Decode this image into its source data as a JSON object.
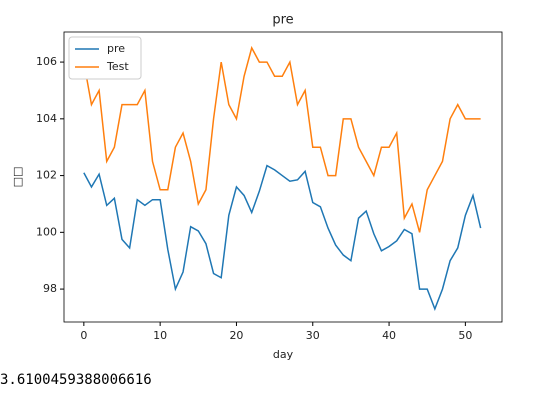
{
  "chart_data": {
    "type": "line",
    "title": "pre",
    "xlabel": "day",
    "ylabel": "□□",
    "x": [
      0,
      1,
      2,
      3,
      4,
      5,
      6,
      7,
      8,
      9,
      10,
      11,
      12,
      13,
      14,
      15,
      16,
      17,
      18,
      19,
      20,
      21,
      22,
      23,
      24,
      25,
      26,
      27,
      28,
      29,
      30,
      31,
      32,
      33,
      34,
      35,
      36,
      37,
      38,
      39,
      40,
      41,
      42,
      43,
      44,
      45,
      46,
      47,
      48,
      49,
      50,
      51,
      52
    ],
    "series": [
      {
        "name": "pre",
        "color": "#1f77b4",
        "values": [
          102.1,
          101.6,
          102.05,
          100.95,
          101.2,
          99.75,
          99.45,
          101.15,
          100.95,
          101.15,
          101.15,
          99.4,
          98.0,
          98.6,
          100.2,
          100.05,
          99.6,
          98.55,
          98.4,
          100.6,
          101.6,
          101.3,
          100.7,
          101.45,
          102.35,
          102.2,
          102.0,
          101.8,
          101.85,
          102.15,
          101.05,
          100.9,
          100.15,
          99.55,
          99.2,
          99.0,
          100.5,
          100.75,
          99.95,
          99.35,
          99.5,
          99.7,
          100.1,
          99.95,
          98.0,
          98.0,
          97.3,
          98.0,
          99.0,
          99.45,
          100.6,
          101.3,
          100.15
        ]
      },
      {
        "name": "Test",
        "color": "#ff7f0e",
        "values": [
          106,
          104.5,
          105,
          102.5,
          103,
          104.5,
          104.5,
          104.5,
          105,
          102.5,
          101.5,
          101.5,
          103,
          103.5,
          102.5,
          101,
          101.5,
          104,
          106,
          104.5,
          104,
          105.5,
          106.5,
          106,
          106,
          105.5,
          105.5,
          106,
          104.5,
          105,
          103,
          103,
          102,
          102,
          104,
          104,
          103,
          102.5,
          102,
          103,
          103,
          103.5,
          100.5,
          101,
          100,
          101.5,
          102,
          102.5,
          104,
          104.5,
          104,
          104,
          104
        ]
      }
    ],
    "xlim": [
      -2.6,
      54.8
    ],
    "xticks": [
      0,
      10,
      20,
      30,
      40,
      50
    ],
    "ylim": [
      96.84,
      107.06
    ],
    "yticks": [
      98,
      100,
      102,
      104,
      106
    ],
    "grid": false,
    "legend": "upper left"
  },
  "printed_output": "3.6100459388006616"
}
